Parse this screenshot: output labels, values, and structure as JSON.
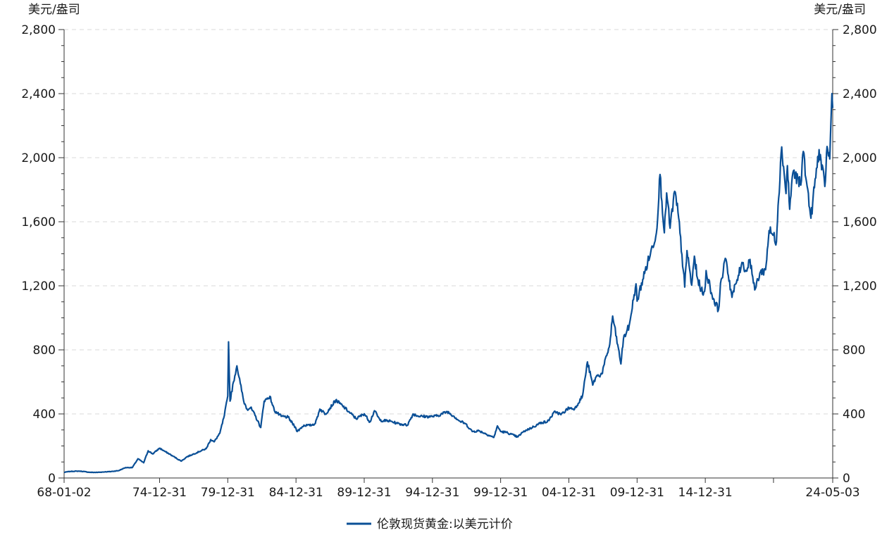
{
  "chart_data": {
    "type": "line",
    "title": "",
    "xlabel": "",
    "ylabel": "美元/盎司",
    "y2label": "美元/盎司",
    "ylim": [
      0,
      2800
    ],
    "yticks": [
      0,
      400,
      800,
      1200,
      1600,
      2000,
      2400,
      2800
    ],
    "ytick_labels": [
      "0",
      "400",
      "800",
      "1,200",
      "1,600",
      "2,000",
      "2,400",
      "2,800"
    ],
    "xlim": [
      "1968-01-02",
      "2024-05-03"
    ],
    "xticks": [
      {
        "date": "1968-01-02",
        "label": "68-01-02"
      },
      {
        "date": "1974-12-31",
        "label": "74-12-31"
      },
      {
        "date": "1979-12-31",
        "label": "79-12-31"
      },
      {
        "date": "1984-12-31",
        "label": "84-12-31"
      },
      {
        "date": "1989-12-31",
        "label": "89-12-31"
      },
      {
        "date": "1994-12-31",
        "label": "94-12-31"
      },
      {
        "date": "1999-12-31",
        "label": "99-12-31"
      },
      {
        "date": "2004-12-31",
        "label": "04-12-31"
      },
      {
        "date": "2009-12-31",
        "label": "09-12-31"
      },
      {
        "date": "2014-12-31",
        "label": "14-12-31"
      },
      {
        "date": "2024-05-03",
        "label": "24-05-03"
      }
    ],
    "grid": true,
    "legend_position": "bottom-center",
    "series": [
      {
        "name": "伦敦现货黄金:以美元计价",
        "color": "#0a4f96",
        "points": [
          [
            "1968-01-02",
            35
          ],
          [
            "1968-06-01",
            41
          ],
          [
            "1969-03-01",
            43
          ],
          [
            "1969-12-01",
            35
          ],
          [
            "1970-06-01",
            35
          ],
          [
            "1971-01-01",
            38
          ],
          [
            "1971-06-01",
            40
          ],
          [
            "1972-01-01",
            46
          ],
          [
            "1972-07-01",
            65
          ],
          [
            "1973-01-01",
            65
          ],
          [
            "1973-06-01",
            120
          ],
          [
            "1973-11-01",
            95
          ],
          [
            "1974-03-01",
            170
          ],
          [
            "1974-07-01",
            150
          ],
          [
            "1974-12-31",
            186
          ],
          [
            "1975-06-01",
            165
          ],
          [
            "1975-12-01",
            140
          ],
          [
            "1976-08-01",
            105
          ],
          [
            "1977-01-01",
            132
          ],
          [
            "1977-12-01",
            165
          ],
          [
            "1978-06-01",
            183
          ],
          [
            "1978-10-01",
            240
          ],
          [
            "1979-01-01",
            226
          ],
          [
            "1979-06-01",
            279
          ],
          [
            "1979-10-01",
            390
          ],
          [
            "1979-12-31",
            512
          ],
          [
            "1980-01-21",
            850
          ],
          [
            "1980-03-01",
            480
          ],
          [
            "1980-06-01",
            600
          ],
          [
            "1980-09-01",
            700
          ],
          [
            "1980-12-01",
            590
          ],
          [
            "1981-03-01",
            480
          ],
          [
            "1981-06-01",
            430
          ],
          [
            "1981-09-01",
            440
          ],
          [
            "1982-01-01",
            390
          ],
          [
            "1982-06-01",
            315
          ],
          [
            "1982-09-01",
            480
          ],
          [
            "1983-02-01",
            510
          ],
          [
            "1983-06-01",
            420
          ],
          [
            "1983-12-01",
            385
          ],
          [
            "1984-06-01",
            380
          ],
          [
            "1984-12-31",
            309
          ],
          [
            "1985-02-01",
            290
          ],
          [
            "1985-08-01",
            330
          ],
          [
            "1985-12-31",
            327
          ],
          [
            "1986-06-01",
            340
          ],
          [
            "1986-10-01",
            430
          ],
          [
            "1987-03-01",
            400
          ],
          [
            "1987-12-01",
            486
          ],
          [
            "1988-06-01",
            450
          ],
          [
            "1988-12-01",
            410
          ],
          [
            "1989-06-01",
            370
          ],
          [
            "1989-12-31",
            401
          ],
          [
            "1990-06-01",
            350
          ],
          [
            "1990-10-01",
            420
          ],
          [
            "1991-03-01",
            360
          ],
          [
            "1991-12-01",
            355
          ],
          [
            "1992-06-01",
            340
          ],
          [
            "1992-12-01",
            333
          ],
          [
            "1993-03-01",
            330
          ],
          [
            "1993-08-01",
            400
          ],
          [
            "1994-01-01",
            385
          ],
          [
            "1994-12-31",
            383
          ],
          [
            "1995-06-01",
            390
          ],
          [
            "1996-02-01",
            415
          ],
          [
            "1996-08-01",
            385
          ],
          [
            "1997-01-01",
            355
          ],
          [
            "1997-06-01",
            340
          ],
          [
            "1997-12-01",
            290
          ],
          [
            "1998-06-01",
            295
          ],
          [
            "1999-07-01",
            253
          ],
          [
            "1999-10-05",
            325
          ],
          [
            "1999-12-31",
            290
          ],
          [
            "2000-06-01",
            285
          ],
          [
            "2001-04-01",
            256
          ],
          [
            "2001-09-01",
            290
          ],
          [
            "2002-06-01",
            320
          ],
          [
            "2002-12-31",
            347
          ],
          [
            "2003-06-01",
            350
          ],
          [
            "2003-12-31",
            416
          ],
          [
            "2004-06-01",
            395
          ],
          [
            "2004-12-31",
            438
          ],
          [
            "2005-06-01",
            430
          ],
          [
            "2005-12-31",
            513
          ],
          [
            "2006-05-12",
            725
          ],
          [
            "2006-10-01",
            580
          ],
          [
            "2006-12-31",
            632
          ],
          [
            "2007-06-01",
            650
          ],
          [
            "2007-12-31",
            836
          ],
          [
            "2008-03-17",
            1011
          ],
          [
            "2008-10-24",
            712
          ],
          [
            "2008-12-31",
            869
          ],
          [
            "2009-06-01",
            950
          ],
          [
            "2009-12-02",
            1212
          ],
          [
            "2009-12-31",
            1104
          ],
          [
            "2010-06-01",
            1240
          ],
          [
            "2010-12-31",
            1410
          ],
          [
            "2011-06-01",
            1530
          ],
          [
            "2011-09-06",
            1895
          ],
          [
            "2011-12-31",
            1531
          ],
          [
            "2012-03-01",
            1780
          ],
          [
            "2012-06-01",
            1560
          ],
          [
            "2012-10-01",
            1790
          ],
          [
            "2012-12-31",
            1657
          ],
          [
            "2013-04-15",
            1395
          ],
          [
            "2013-06-28",
            1192
          ],
          [
            "2013-08-28",
            1420
          ],
          [
            "2013-12-31",
            1204
          ],
          [
            "2014-03-14",
            1385
          ],
          [
            "2014-06-01",
            1250
          ],
          [
            "2014-11-05",
            1142
          ],
          [
            "2014-12-31",
            1199
          ],
          [
            "2015-01-22",
            1295
          ],
          [
            "2015-07-01",
            1140
          ],
          [
            "2015-12-17",
            1049
          ],
          [
            "2016-03-01",
            1240
          ],
          [
            "2016-07-06",
            1366
          ],
          [
            "2016-12-15",
            1128
          ],
          [
            "2017-06-01",
            1265
          ],
          [
            "2017-09-08",
            1346
          ],
          [
            "2017-12-31",
            1291
          ],
          [
            "2018-04-11",
            1365
          ],
          [
            "2018-08-16",
            1174
          ],
          [
            "2018-12-31",
            1280
          ],
          [
            "2019-06-01",
            1300
          ],
          [
            "2019-09-04",
            1545
          ],
          [
            "2019-12-31",
            1515
          ],
          [
            "2020-03-19",
            1475
          ],
          [
            "2020-05-01",
            1700
          ],
          [
            "2020-08-07",
            2067
          ],
          [
            "2020-11-30",
            1776
          ],
          [
            "2021-01-06",
            1950
          ],
          [
            "2021-03-08",
            1678
          ],
          [
            "2021-06-01",
            1905
          ],
          [
            "2021-12-31",
            1829
          ],
          [
            "2022-03-08",
            2039
          ],
          [
            "2022-06-01",
            1850
          ],
          [
            "2022-09-28",
            1622
          ],
          [
            "2022-12-31",
            1812
          ],
          [
            "2023-05-04",
            2050
          ],
          [
            "2023-10-05",
            1820
          ],
          [
            "2023-12-04",
            2070
          ],
          [
            "2024-02-14",
            1992
          ],
          [
            "2024-04-12",
            2400
          ],
          [
            "2024-05-03",
            2310
          ]
        ]
      }
    ]
  }
}
